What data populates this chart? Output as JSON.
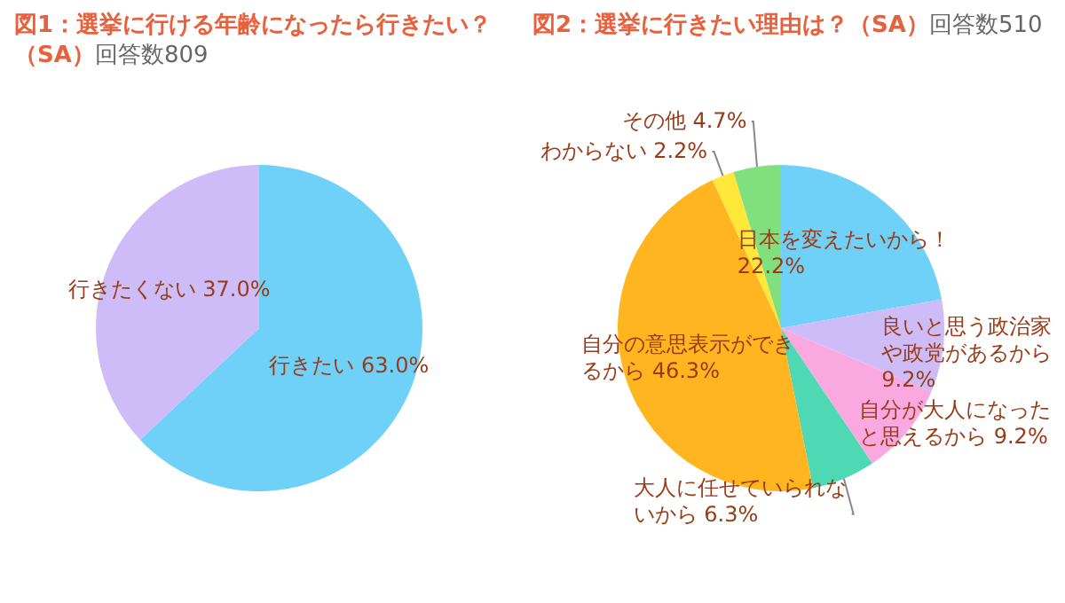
{
  "chart_data": [
    {
      "type": "pie",
      "title": "図1：選挙に行ける年齢になったら行きたい？（SA）",
      "subtitle": "回答数809",
      "categories": [
        "行きたい",
        "行きたくない"
      ],
      "values": [
        63.0,
        37.0
      ],
      "colors": [
        "#6fd0f8",
        "#cdbcf7"
      ],
      "value_labels": [
        "63.0%",
        "37.0%"
      ]
    },
    {
      "type": "pie",
      "title": "図2：選挙に行きたい理由は？（SA）",
      "subtitle": "回答数510",
      "categories": [
        "日本を変えたいから！",
        "良いと思う政治家や政党があるから",
        "自分が大人になったと思えるから",
        "大人に任せていられないから",
        "自分の意思表示ができるから",
        "わからない",
        "その他"
      ],
      "values": [
        22.2,
        9.2,
        9.2,
        6.3,
        46.3,
        2.2,
        4.7
      ],
      "colors": [
        "#6fd0f8",
        "#cdbcf7",
        "#f9a9e0",
        "#4fd8b4",
        "#ffb51f",
        "#ffe83a",
        "#80e07e"
      ],
      "value_labels": [
        "22.2%",
        "9.2%",
        "9.2%",
        "6.3%",
        "46.3%",
        "2.2%",
        "4.7%"
      ]
    }
  ]
}
